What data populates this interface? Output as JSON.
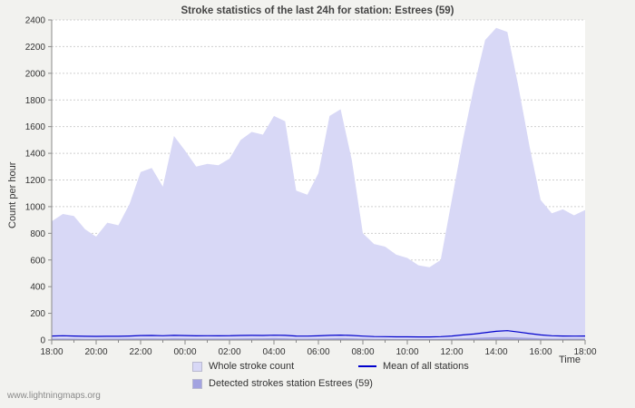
{
  "page": {
    "watermark": "www.lightningmaps.org"
  },
  "chart_data": {
    "type": "area",
    "title": "Stroke statistics of the last 24h for station: Estrees (59)",
    "xlabel": "Time",
    "ylabel": "Count per hour",
    "ylim": [
      0,
      2400
    ],
    "yticks": [
      0,
      200,
      400,
      600,
      800,
      1000,
      1200,
      1400,
      1600,
      1800,
      2000,
      2200,
      2400
    ],
    "x_hours_span": 24,
    "x_tick_labels": [
      "18:00",
      "20:00",
      "22:00",
      "00:00",
      "02:00",
      "04:00",
      "06:00",
      "08:00",
      "10:00",
      "12:00",
      "14:00",
      "16:00",
      "18:00"
    ],
    "sample_interval_hours": 0.5,
    "grid": "horizontal-dotted",
    "legend_position": "bottom",
    "colors": {
      "page_bg": "#f2f2ef",
      "plot_bg": "#ffffff",
      "grid": "#cfcfcf",
      "axis": "#8a8a8a"
    },
    "series": [
      {
        "name": "Whole stroke count",
        "type": "area",
        "color": "#d8d8f6",
        "values": [
          890,
          945,
          930,
          830,
          775,
          880,
          860,
          1020,
          1260,
          1290,
          1150,
          1530,
          1420,
          1300,
          1320,
          1310,
          1360,
          1500,
          1560,
          1540,
          1680,
          1640,
          1120,
          1090,
          1250,
          1680,
          1730,
          1350,
          800,
          720,
          700,
          640,
          615,
          560,
          545,
          600,
          1050,
          1500,
          1900,
          2250,
          2340,
          2310,
          1900,
          1450,
          1050,
          950,
          980,
          935,
          975
        ]
      },
      {
        "name": "Detected strokes station Estrees (59)",
        "type": "area",
        "color": "#a3a3e0",
        "values": [
          10,
          11,
          10,
          9,
          9,
          10,
          10,
          11,
          12,
          12,
          11,
          13,
          12,
          11,
          11,
          11,
          11,
          12,
          13,
          13,
          14,
          13,
          10,
          10,
          11,
          13,
          14,
          13,
          10,
          8,
          8,
          7,
          7,
          7,
          7,
          8,
          10,
          13,
          16,
          19,
          21,
          22,
          19,
          16,
          12,
          10,
          10,
          10,
          10
        ]
      },
      {
        "name": "Mean of all stations",
        "type": "line",
        "color": "#0000cc",
        "values": [
          30,
          32,
          30,
          28,
          27,
          28,
          28,
          30,
          33,
          34,
          32,
          35,
          33,
          31,
          32,
          31,
          32,
          34,
          35,
          34,
          36,
          35,
          30,
          29,
          31,
          35,
          37,
          34,
          29,
          26,
          25,
          24,
          24,
          23,
          23,
          25,
          30,
          38,
          45,
          55,
          65,
          70,
          60,
          48,
          38,
          32,
          30,
          29,
          30
        ]
      }
    ]
  }
}
